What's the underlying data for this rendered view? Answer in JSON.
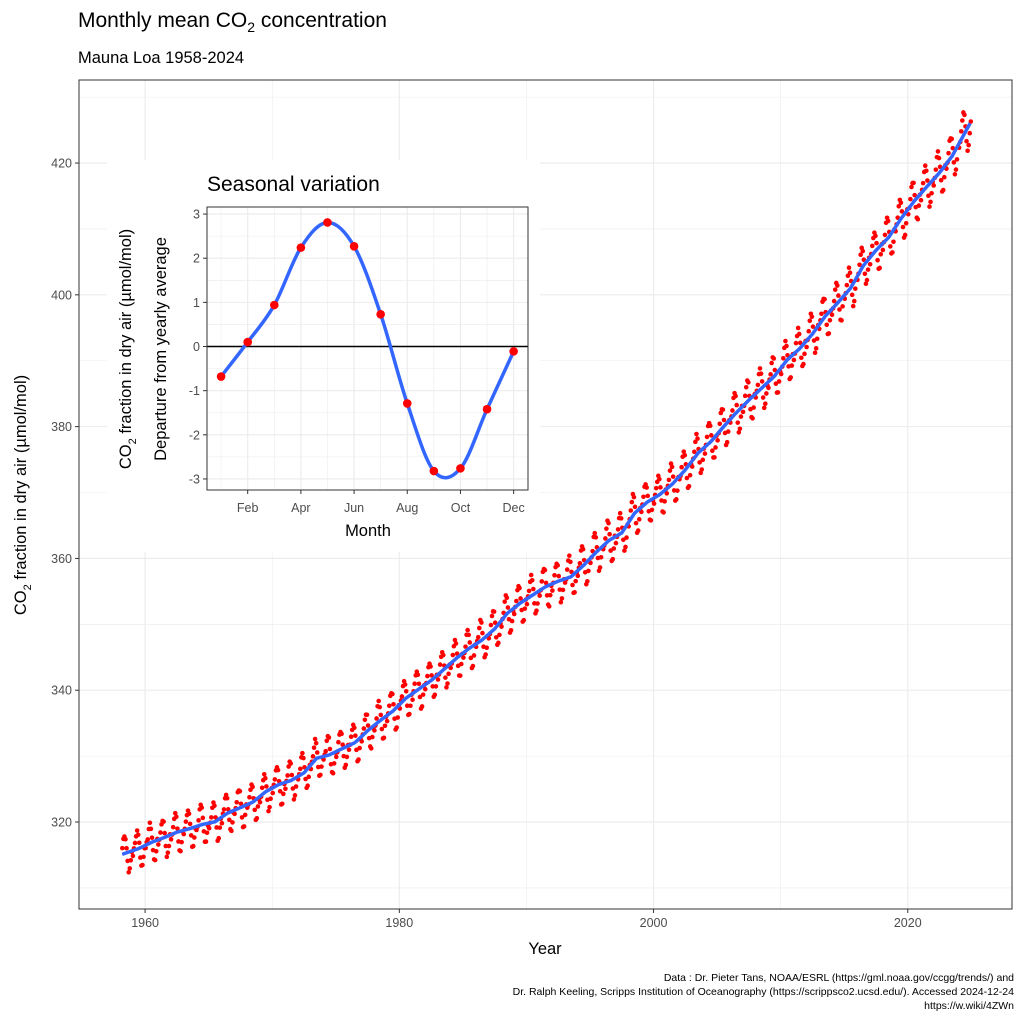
{
  "chart_data": [
    {
      "type": "scatter",
      "title": {
        "prefix": "Monthly mean CO",
        "sub": "2",
        "suffix": " concentration"
      },
      "subtitle": "Mauna Loa 1958-2024",
      "xlabel": "Year",
      "ylabel": {
        "prefix": "CO",
        "sub": "2",
        "suffix": " fraction in dry air (µmol/mol)"
      },
      "xlim": [
        1954.8,
        2028.2
      ],
      "ylim": [
        306.8,
        432.6
      ],
      "x_ticks": [
        "1960",
        "1980",
        "2000",
        "2020"
      ],
      "y_ticks": [
        "320",
        "340",
        "360",
        "380",
        "400",
        "420"
      ],
      "grid": true,
      "point_color": "#ff0000",
      "line_color": "#3366ff",
      "series": [
        {
          "kind": "monthly points (annual mean + seasonal departure)",
          "years": [
            1958,
            1959,
            1960,
            1961,
            1962,
            1963,
            1964,
            1965,
            1966,
            1967,
            1968,
            1969,
            1970,
            1971,
            1972,
            1973,
            1974,
            1975,
            1976,
            1977,
            1978,
            1979,
            1980,
            1981,
            1982,
            1983,
            1984,
            1985,
            1986,
            1987,
            1988,
            1989,
            1990,
            1991,
            1992,
            1993,
            1994,
            1995,
            1996,
            1997,
            1998,
            1999,
            2000,
            2001,
            2002,
            2003,
            2004,
            2005,
            2006,
            2007,
            2008,
            2009,
            2010,
            2011,
            2012,
            2013,
            2014,
            2015,
            2016,
            2017,
            2018,
            2019,
            2020,
            2021,
            2022,
            2023,
            2024
          ],
          "annual_mean": [
            315.3,
            315.98,
            316.91,
            317.64,
            318.45,
            318.99,
            319.62,
            320.04,
            321.37,
            322.18,
            323.05,
            324.62,
            325.68,
            326.32,
            327.46,
            329.68,
            330.19,
            331.13,
            332.03,
            333.84,
            335.41,
            336.84,
            338.76,
            340.12,
            341.48,
            343.15,
            344.87,
            346.35,
            347.61,
            349.31,
            351.69,
            353.2,
            354.45,
            355.7,
            356.54,
            357.21,
            358.96,
            360.97,
            362.74,
            363.88,
            366.84,
            368.54,
            369.71,
            371.32,
            373.45,
            375.98,
            377.7,
            379.98,
            382.09,
            384.02,
            385.83,
            387.64,
            390.1,
            391.85,
            394.06,
            396.74,
            398.81,
            401.01,
            404.41,
            406.76,
            408.72,
            411.65,
            414.21,
            416.41,
            418.53,
            421.08,
            424.61
          ],
          "first_month": 3
        }
      ]
    },
    {
      "type": "line",
      "title": "Seasonal variation",
      "xlabel": "Month",
      "ylabel_line1": {
        "prefix": "CO",
        "sub": "2",
        "suffix": " fraction in dry air (µmol/mol)"
      },
      "ylabel_line2": "Departure from yearly average",
      "months": [
        1,
        2,
        3,
        4,
        5,
        6,
        7,
        8,
        9,
        10,
        11,
        12
      ],
      "values": [
        -0.68,
        0.1,
        0.94,
        2.24,
        2.81,
        2.27,
        0.73,
        -1.29,
        -2.82,
        -2.76,
        -1.42,
        -0.11
      ],
      "x_ticks": [
        {
          "m": 2,
          "label": "Feb"
        },
        {
          "m": 4,
          "label": "Apr"
        },
        {
          "m": 6,
          "label": "Jun"
        },
        {
          "m": 8,
          "label": "Aug"
        },
        {
          "m": 10,
          "label": "Oct"
        },
        {
          "m": 12,
          "label": "Dec"
        }
      ],
      "y_ticks": [
        "-3",
        "-2",
        "-1",
        "0",
        "1",
        "2",
        "3"
      ],
      "xlim": [
        0.47,
        12.54
      ],
      "ylim": [
        -3.25,
        3.16
      ],
      "reference_line": 0
    }
  ],
  "caption": [
    "Data : Dr. Pieter Tans, NOAA/ESRL (https://gml.noaa.gov/ccgg/trends/) and",
    "Dr. Ralph Keeling, Scripps Institution of Oceanography (https://scrippsco2.ucsd.edu/). Accessed 2024-12-24",
    "https://w.wiki/4ZWn"
  ]
}
